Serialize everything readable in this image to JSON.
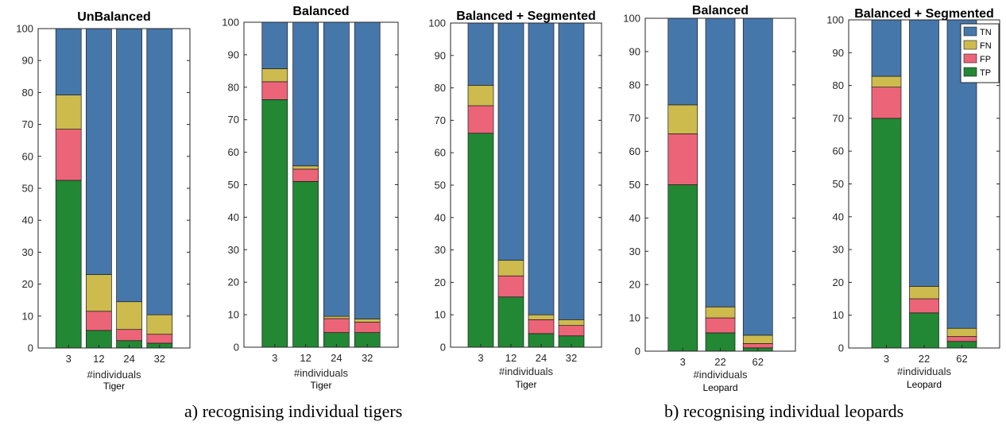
{
  "colors": {
    "TN": "#4677ab",
    "FN": "#cdbb4e",
    "FP": "#ec6478",
    "TP": "#228834",
    "axis": "#262626"
  },
  "legend": {
    "placement": "top-right",
    "entries": [
      "TN",
      "FN",
      "FP",
      "TP"
    ]
  },
  "captions": {
    "a": "a) recognising individual tigers",
    "b": "b) recognising individual leopards"
  },
  "chart_data": [
    {
      "type": "bar",
      "stacked": true,
      "title": "UnBalanced",
      "xlabel": "#individuals",
      "sublabel": "Tiger",
      "categories": [
        "3",
        "12",
        "24",
        "32"
      ],
      "ylim": [
        0,
        100
      ],
      "yticks": [
        0,
        10,
        20,
        30,
        40,
        50,
        60,
        70,
        80,
        90,
        100
      ],
      "series": [
        {
          "name": "TP",
          "values": [
            52.5,
            5.5,
            2.3,
            1.5
          ]
        },
        {
          "name": "FP",
          "values": [
            16,
            6,
            3.5,
            2.8
          ]
        },
        {
          "name": "FN",
          "values": [
            10.7,
            11.5,
            8.7,
            6.1
          ]
        },
        {
          "name": "TN",
          "values": [
            20.8,
            77,
            85.5,
            89.6
          ]
        }
      ]
    },
    {
      "type": "bar",
      "stacked": true,
      "title": "Balanced",
      "xlabel": "#individuals",
      "sublabel": "Tiger",
      "categories": [
        "3",
        "12",
        "24",
        "32"
      ],
      "ylim": [
        0,
        100
      ],
      "yticks": [
        0,
        10,
        20,
        30,
        40,
        50,
        60,
        70,
        80,
        90,
        100
      ],
      "series": [
        {
          "name": "TP",
          "values": [
            76.2,
            51,
            4.5,
            4.5
          ]
        },
        {
          "name": "FP",
          "values": [
            5.5,
            3.8,
            4.3,
            3.2
          ]
        },
        {
          "name": "FN",
          "values": [
            4,
            1,
            0.7,
            1
          ]
        },
        {
          "name": "TN",
          "values": [
            14.3,
            44.2,
            90.5,
            91.3
          ]
        }
      ]
    },
    {
      "type": "bar",
      "stacked": true,
      "title": "Balanced + Segmented",
      "xlabel": "#individuals",
      "sublabel": "Tiger",
      "categories": [
        "3",
        "12",
        "24",
        "32"
      ],
      "ylim": [
        0,
        100
      ],
      "yticks": [
        0,
        10,
        20,
        30,
        40,
        50,
        60,
        70,
        80,
        90,
        100
      ],
      "series": [
        {
          "name": "TP",
          "values": [
            66,
            15.5,
            4.2,
            3.5
          ]
        },
        {
          "name": "FP",
          "values": [
            8.5,
            6.5,
            4.3,
            3.2
          ]
        },
        {
          "name": "FN",
          "values": [
            6.3,
            4.8,
            1.5,
            1.8
          ]
        },
        {
          "name": "TN",
          "values": [
            19.2,
            73.2,
            90,
            91.5
          ]
        }
      ]
    },
    {
      "type": "bar",
      "stacked": true,
      "title": "Balanced",
      "xlabel": "#individuals",
      "sublabel": "Leopard",
      "categories": [
        "3",
        "22",
        "62"
      ],
      "ylim": [
        0,
        100
      ],
      "yticks": [
        0,
        10,
        20,
        30,
        40,
        50,
        60,
        70,
        80,
        90,
        100
      ],
      "series": [
        {
          "name": "TP",
          "values": [
            50,
            5.5,
            1
          ]
        },
        {
          "name": "FP",
          "values": [
            15.3,
            4.5,
            1.3
          ]
        },
        {
          "name": "FN",
          "values": [
            8.7,
            3.3,
            2.5
          ]
        },
        {
          "name": "TN",
          "values": [
            26,
            86.7,
            95.2
          ]
        }
      ]
    },
    {
      "type": "bar",
      "stacked": true,
      "title": "Balanced + Segmented",
      "xlabel": "#individuals",
      "sublabel": "Leopard",
      "categories": [
        "3",
        "22",
        "62"
      ],
      "ylim": [
        0,
        100
      ],
      "yticks": [
        0,
        10,
        20,
        30,
        40,
        50,
        60,
        70,
        80,
        90,
        100
      ],
      "series": [
        {
          "name": "TP",
          "values": [
            70,
            10.7,
            2
          ]
        },
        {
          "name": "FP",
          "values": [
            9.5,
            4.3,
            1.5
          ]
        },
        {
          "name": "FN",
          "values": [
            3.3,
            3.8,
            2.5
          ]
        },
        {
          "name": "TN",
          "values": [
            17.2,
            81.2,
            94
          ]
        }
      ]
    }
  ]
}
